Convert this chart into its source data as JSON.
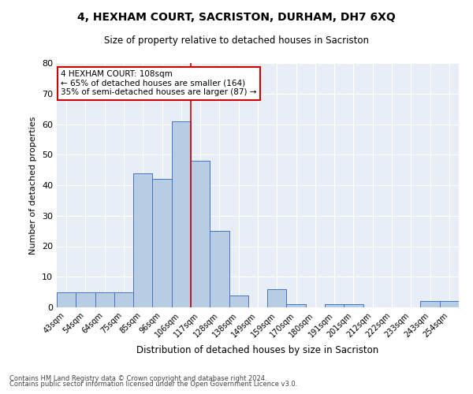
{
  "title": "4, HEXHAM COURT, SACRISTON, DURHAM, DH7 6XQ",
  "subtitle": "Size of property relative to detached houses in Sacriston",
  "xlabel": "Distribution of detached houses by size in Sacriston",
  "ylabel": "Number of detached properties",
  "categories": [
    "43sqm",
    "54sqm",
    "64sqm",
    "75sqm",
    "85sqm",
    "96sqm",
    "106sqm",
    "117sqm",
    "128sqm",
    "138sqm",
    "149sqm",
    "159sqm",
    "170sqm",
    "180sqm",
    "191sqm",
    "201sqm",
    "212sqm",
    "222sqm",
    "233sqm",
    "243sqm",
    "254sqm"
  ],
  "values": [
    5,
    5,
    5,
    5,
    44,
    42,
    61,
    48,
    25,
    4,
    0,
    6,
    1,
    0,
    1,
    1,
    0,
    0,
    0,
    2,
    2
  ],
  "bar_color": "#b8cce4",
  "bar_edge_color": "#4472c4",
  "vline_x": 6.5,
  "property_line_label": "4 HEXHAM COURT: 108sqm",
  "annotation_line1": "← 65% of detached houses are smaller (164)",
  "annotation_line2": "35% of semi-detached houses are larger (87) →",
  "vline_color": "#cc0000",
  "annotation_box_edge": "#cc0000",
  "ylim": [
    0,
    80
  ],
  "yticks": [
    0,
    10,
    20,
    30,
    40,
    50,
    60,
    70,
    80
  ],
  "bg_color": "#e8eef5",
  "footer1": "Contains HM Land Registry data © Crown copyright and database right 2024.",
  "footer2": "Contains public sector information licensed under the Open Government Licence v3.0."
}
